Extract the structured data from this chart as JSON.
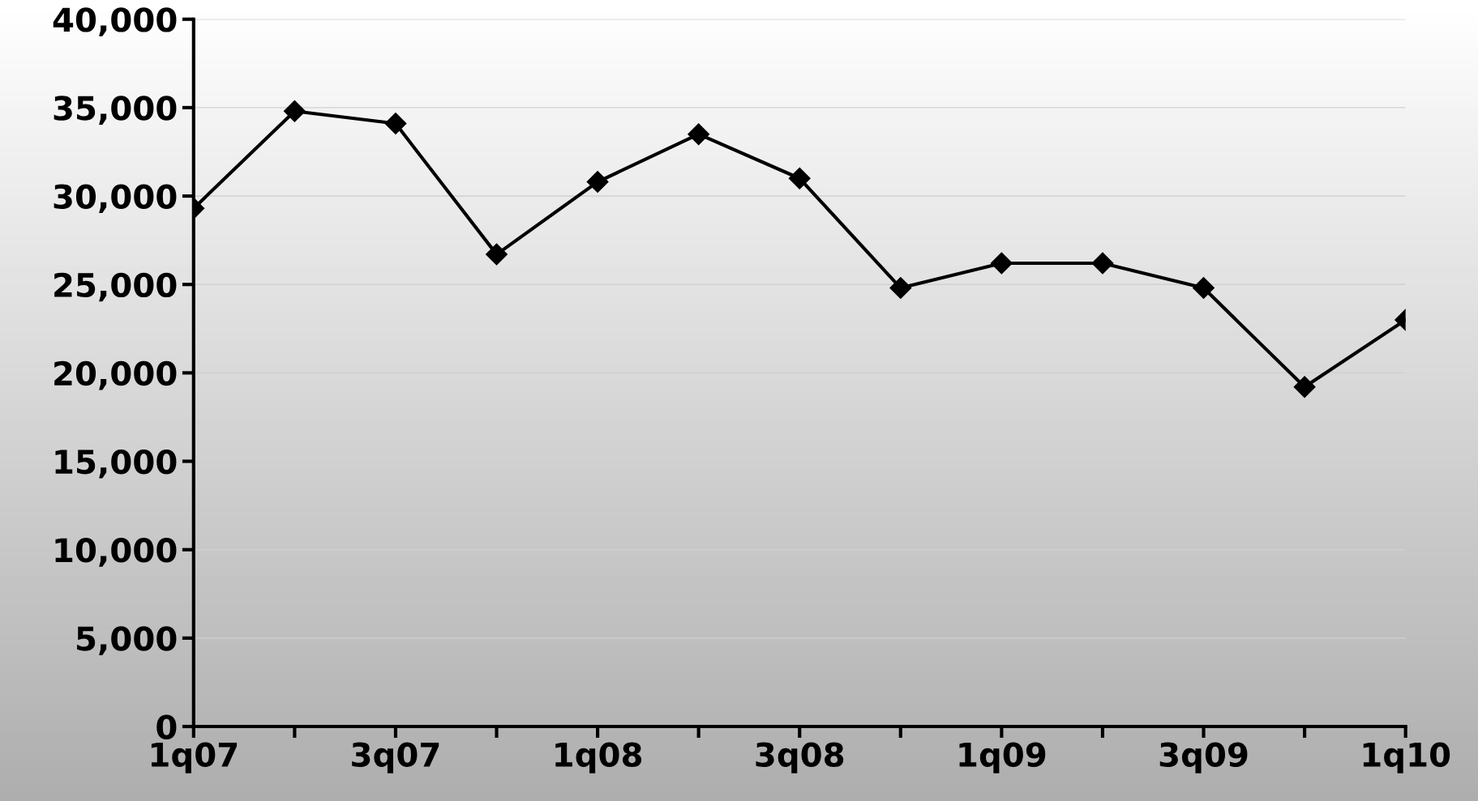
{
  "chart_data": {
    "type": "line",
    "categories": [
      "1q07",
      null,
      "3q07",
      null,
      "1q08",
      null,
      "3q08",
      null,
      "1q09",
      null,
      "3q09",
      null,
      "1q10"
    ],
    "series": [
      {
        "color": "#000000",
        "values": [
          29300,
          34800,
          34100,
          26700,
          30800,
          33500,
          31000,
          24800,
          26200,
          26200,
          24800,
          19200,
          23000
        ]
      }
    ],
    "ylim": [
      0,
      40000
    ],
    "yticks": [
      {
        "value": 0,
        "label": "0"
      },
      {
        "value": 5000,
        "label": "5,000"
      },
      {
        "value": 10000,
        "label": "10,000"
      },
      {
        "value": 15000,
        "label": "15,000"
      },
      {
        "value": 20000,
        "label": "20,000"
      },
      {
        "value": 25000,
        "label": "25,000"
      },
      {
        "value": 30000,
        "label": "30,000"
      },
      {
        "value": 35000,
        "label": "35,000"
      },
      {
        "value": 40000,
        "label": "40,000"
      }
    ],
    "grid": "y",
    "marker": "diamond",
    "line_style": "solid"
  }
}
